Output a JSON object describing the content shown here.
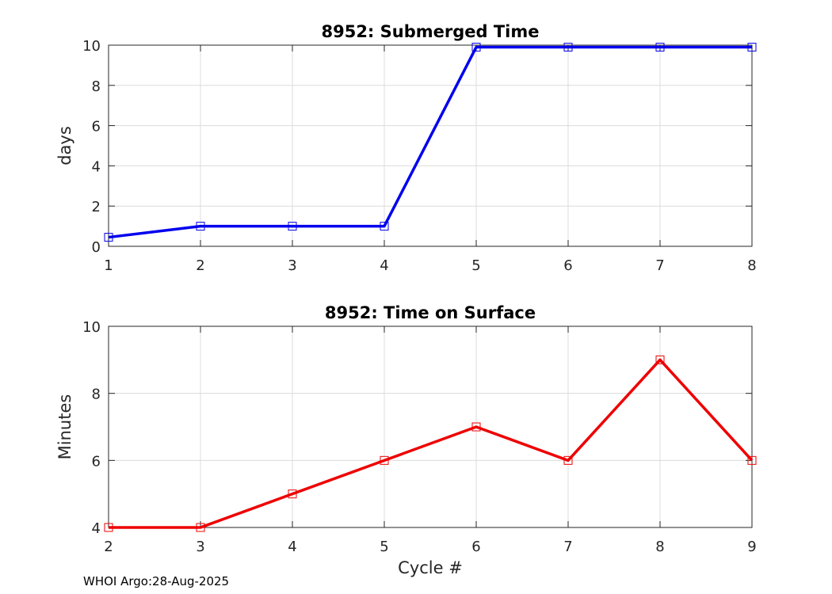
{
  "chart_data": [
    {
      "type": "line",
      "title": "8952: Submerged Time",
      "xlabel": "",
      "ylabel": "days",
      "x": [
        1,
        2,
        3,
        4,
        5,
        6,
        7,
        8
      ],
      "series": [
        {
          "name": "Submerged Time",
          "values": [
            0.45,
            1.0,
            1.0,
            1.0,
            9.9,
            9.9,
            9.9,
            9.9
          ],
          "color": "#0000ee",
          "marker": "square"
        }
      ],
      "xlim": [
        1,
        8
      ],
      "ylim": [
        0,
        10
      ],
      "xticks": [
        1,
        2,
        3,
        4,
        5,
        6,
        7,
        8
      ],
      "yticks": [
        0,
        2,
        4,
        6,
        8,
        10
      ],
      "grid": true
    },
    {
      "type": "line",
      "title": "8952: Time on Surface",
      "xlabel": "Cycle #",
      "ylabel": "Minutes",
      "x": [
        2,
        3,
        4,
        5,
        6,
        7,
        8,
        9
      ],
      "series": [
        {
          "name": "Time on Surface",
          "values": [
            4,
            4,
            5,
            6,
            7,
            6,
            9,
            6
          ],
          "color": "#ee0000",
          "marker": "square"
        }
      ],
      "xlim": [
        2,
        9
      ],
      "ylim": [
        4,
        10
      ],
      "xticks": [
        2,
        3,
        4,
        5,
        6,
        7,
        8,
        9
      ],
      "yticks": [
        4,
        6,
        8,
        10
      ],
      "grid": true
    }
  ],
  "footer": {
    "text": "WHOI Argo:28-Aug-2025"
  }
}
